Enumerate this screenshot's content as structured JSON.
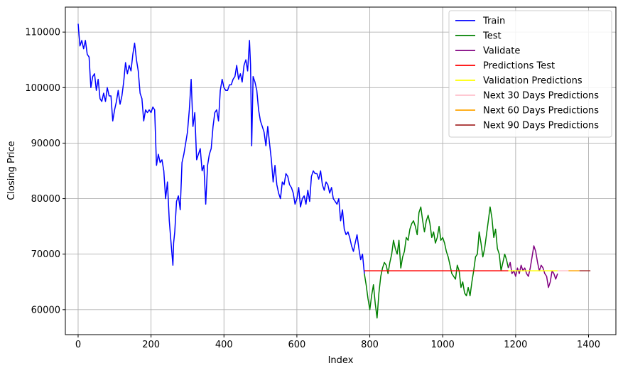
{
  "chart_data": {
    "type": "line",
    "title": "",
    "xlabel": "Index",
    "ylabel": "Closing Price",
    "xlim": [
      -35,
      1475
    ],
    "ylim": [
      55500,
      114500
    ],
    "xticks": [
      0,
      200,
      400,
      600,
      800,
      1000,
      1200,
      1400
    ],
    "xtick_labels": [
      "0",
      "200",
      "400",
      "600",
      "800",
      "1000",
      "1200",
      "1400"
    ],
    "yticks": [
      60000,
      70000,
      80000,
      90000,
      100000,
      110000
    ],
    "ytick_labels": [
      "60000",
      "70000",
      "80000",
      "90000",
      "100000",
      "110000"
    ],
    "grid": true,
    "legend_position": "top-right",
    "series": [
      {
        "name": "Train",
        "color": "#0000ff",
        "x": [
          0,
          5,
          10,
          15,
          20,
          25,
          30,
          35,
          40,
          45,
          50,
          55,
          60,
          65,
          70,
          75,
          80,
          85,
          90,
          95,
          100,
          105,
          110,
          115,
          120,
          125,
          130,
          135,
          140,
          145,
          150,
          155,
          160,
          165,
          170,
          175,
          180,
          185,
          190,
          195,
          200,
          205,
          210,
          215,
          220,
          225,
          230,
          235,
          240,
          245,
          250,
          255,
          260,
          262,
          265,
          270,
          275,
          280,
          285,
          290,
          295,
          300,
          305,
          310,
          315,
          320,
          325,
          330,
          335,
          340,
          345,
          350,
          355,
          360,
          365,
          370,
          375,
          380,
          385,
          390,
          395,
          400,
          405,
          410,
          415,
          420,
          425,
          430,
          435,
          440,
          445,
          450,
          455,
          460,
          465,
          470,
          473,
          476,
          480,
          485,
          490,
          495,
          500,
          505,
          510,
          515,
          520,
          525,
          530,
          535,
          540,
          545,
          550,
          555,
          560,
          565,
          570,
          575,
          580,
          585,
          590,
          595,
          600,
          605,
          610,
          615,
          620,
          625,
          630,
          635,
          640,
          645,
          650,
          655,
          660,
          665,
          670,
          675,
          680,
          685,
          690,
          695,
          700,
          705,
          710,
          715,
          720,
          725,
          730,
          735,
          740,
          745,
          750,
          755,
          760,
          765,
          770,
          775,
          780,
          785
        ],
        "values": [
          111500,
          107500,
          108500,
          107000,
          108500,
          106000,
          105500,
          100000,
          102000,
          102500,
          99500,
          101500,
          98000,
          97500,
          99000,
          97500,
          100000,
          98500,
          98500,
          94000,
          96000,
          97500,
          99500,
          97000,
          98500,
          101000,
          104500,
          102500,
          104000,
          103000,
          106000,
          108000,
          105000,
          103000,
          99000,
          98000,
          94000,
          96000,
          95500,
          96000,
          95500,
          96500,
          96000,
          86000,
          88000,
          86500,
          87000,
          85000,
          80000,
          83000,
          76000,
          72000,
          68000,
          72000,
          74000,
          79500,
          80500,
          78000,
          86500,
          88000,
          90000,
          92000,
          96000,
          101500,
          93000,
          95500,
          87000,
          88000,
          89000,
          85000,
          86000,
          79000,
          86000,
          88000,
          89000,
          93000,
          95500,
          96000,
          94000,
          99500,
          101500,
          100000,
          99500,
          99500,
          100500,
          100500,
          101500,
          102000,
          104000,
          101500,
          102500,
          101000,
          104000,
          105000,
          103000,
          108500,
          104000,
          89500,
          102000,
          101000,
          99500,
          96000,
          94000,
          93000,
          92000,
          89500,
          93000,
          90000,
          87000,
          83000,
          86000,
          82500,
          81000,
          80000,
          83000,
          82500,
          84500,
          84000,
          82500,
          82000,
          81000,
          79000,
          80000,
          82000,
          78500,
          80000,
          80500,
          79000,
          81500,
          79500,
          84000,
          85000,
          84500,
          84500,
          83500,
          85000,
          82500,
          81500,
          83000,
          82500,
          81000,
          82000,
          80000,
          79500,
          79000,
          80000,
          76000,
          78000,
          74500,
          73500,
          74000,
          73000,
          71500,
          70500,
          72000,
          73500,
          71000,
          69000,
          70000,
          66500
        ]
      },
      {
        "name": "Test",
        "color": "#008000",
        "x": [
          785,
          790,
          795,
          800,
          805,
          810,
          815,
          820,
          825,
          830,
          835,
          840,
          845,
          850,
          855,
          860,
          865,
          870,
          875,
          880,
          885,
          890,
          895,
          900,
          905,
          910,
          915,
          920,
          925,
          930,
          935,
          940,
          945,
          950,
          955,
          960,
          965,
          970,
          975,
          980,
          985,
          990,
          995,
          1000,
          1005,
          1010,
          1015,
          1020,
          1025,
          1030,
          1035,
          1040,
          1045,
          1050,
          1055,
          1060,
          1065,
          1070,
          1075,
          1080,
          1085,
          1090,
          1095,
          1100,
          1105,
          1110,
          1115,
          1120,
          1125,
          1130,
          1135,
          1140,
          1145,
          1150,
          1155,
          1160,
          1165,
          1170,
          1175,
          1180
        ],
        "values": [
          66500,
          64500,
          62000,
          60000,
          62500,
          64500,
          61000,
          58500,
          63000,
          66000,
          67500,
          68500,
          68000,
          66500,
          68500,
          70000,
          72500,
          71000,
          70000,
          72500,
          67500,
          69500,
          70500,
          73000,
          72500,
          74500,
          75500,
          76000,
          75000,
          73500,
          77500,
          78500,
          76000,
          74000,
          76000,
          77000,
          75500,
          73000,
          74000,
          72000,
          73000,
          75000,
          72500,
          73000,
          72000,
          70500,
          69500,
          68000,
          66500,
          66000,
          65500,
          68000,
          67000,
          64000,
          65000,
          63000,
          62500,
          64000,
          62500,
          65000,
          67000,
          69500,
          70000,
          74000,
          72000,
          69500,
          71000,
          73500,
          76000,
          78500,
          76500,
          73000,
          74500,
          71000,
          70000,
          67000,
          68500,
          70000,
          69000,
          67500
        ]
      },
      {
        "name": "Validate",
        "color": "#800080",
        "x": [
          1180,
          1185,
          1190,
          1195,
          1200,
          1205,
          1210,
          1215,
          1220,
          1225,
          1230,
          1235,
          1240,
          1245,
          1250,
          1255,
          1260,
          1265,
          1270,
          1275,
          1280,
          1285,
          1290,
          1295,
          1300,
          1305,
          1310,
          1315
        ],
        "values": [
          67500,
          68500,
          66500,
          67000,
          66000,
          67500,
          66500,
          68000,
          67000,
          67500,
          66500,
          66000,
          67500,
          69500,
          71500,
          70500,
          68500,
          67000,
          68000,
          67500,
          66500,
          66000,
          64000,
          65000,
          67000,
          66500,
          65500,
          66500
        ]
      },
      {
        "name": "Predictions Test",
        "color": "#ff0000",
        "x": [
          785,
          1180
        ],
        "values": [
          67000,
          67000
        ]
      },
      {
        "name": "Validation Predictions",
        "color": "#ffff00",
        "x": [
          1180,
          1315
        ],
        "values": [
          67000,
          67000
        ]
      },
      {
        "name": "Next 30 Days Predictions",
        "color": "#ffc0cb",
        "x": [
          1315,
          1345
        ],
        "values": [
          67000,
          67000
        ]
      },
      {
        "name": "Next 60 Days Predictions",
        "color": "#ffa500",
        "x": [
          1345,
          1375
        ],
        "values": [
          67000,
          67000
        ]
      },
      {
        "name": "Next 90 Days Predictions",
        "color": "#a52a2a",
        "x": [
          1375,
          1405
        ],
        "values": [
          67000,
          67000
        ]
      }
    ]
  }
}
